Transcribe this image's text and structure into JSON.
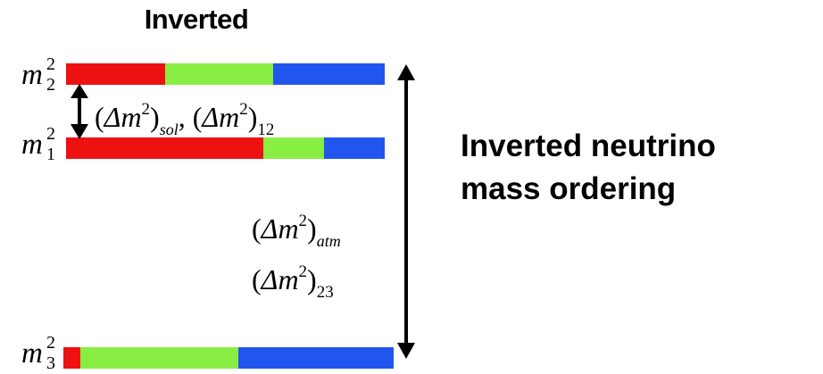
{
  "title": "Inverted",
  "caption": [
    "Inverted neutrino",
    "mass ordering"
  ],
  "levels": {
    "m2": {
      "base": "m",
      "sup": "2",
      "sub": "2"
    },
    "m1": {
      "base": "m",
      "sup": "2",
      "sub": "1"
    },
    "m3": {
      "base": "m",
      "sup": "2",
      "sub": "3"
    }
  },
  "splittings": {
    "sol": {
      "open": "(",
      "delta": "Δ",
      "m": "m",
      "sup": "2",
      "close": ")",
      "sub": "sol",
      "comma": ",",
      "sub2": "12"
    },
    "atm": {
      "open": "(",
      "delta": "Δ",
      "m": "m",
      "sup": "2",
      "close": ")",
      "sub": "atm"
    },
    "s23": {
      "open": "(",
      "delta": "Δ",
      "m": "m",
      "sup": "2",
      "close": ")",
      "sub": "23"
    }
  },
  "flavor_colors": {
    "red": "#ee1111",
    "green": "#88ee44",
    "blue": "#2255ee"
  },
  "flavor_fractions": {
    "m2": [
      0.31,
      0.34,
      0.35
    ],
    "m1": [
      0.62,
      0.19,
      0.19
    ],
    "m3": [
      0.05,
      0.48,
      0.47
    ]
  }
}
